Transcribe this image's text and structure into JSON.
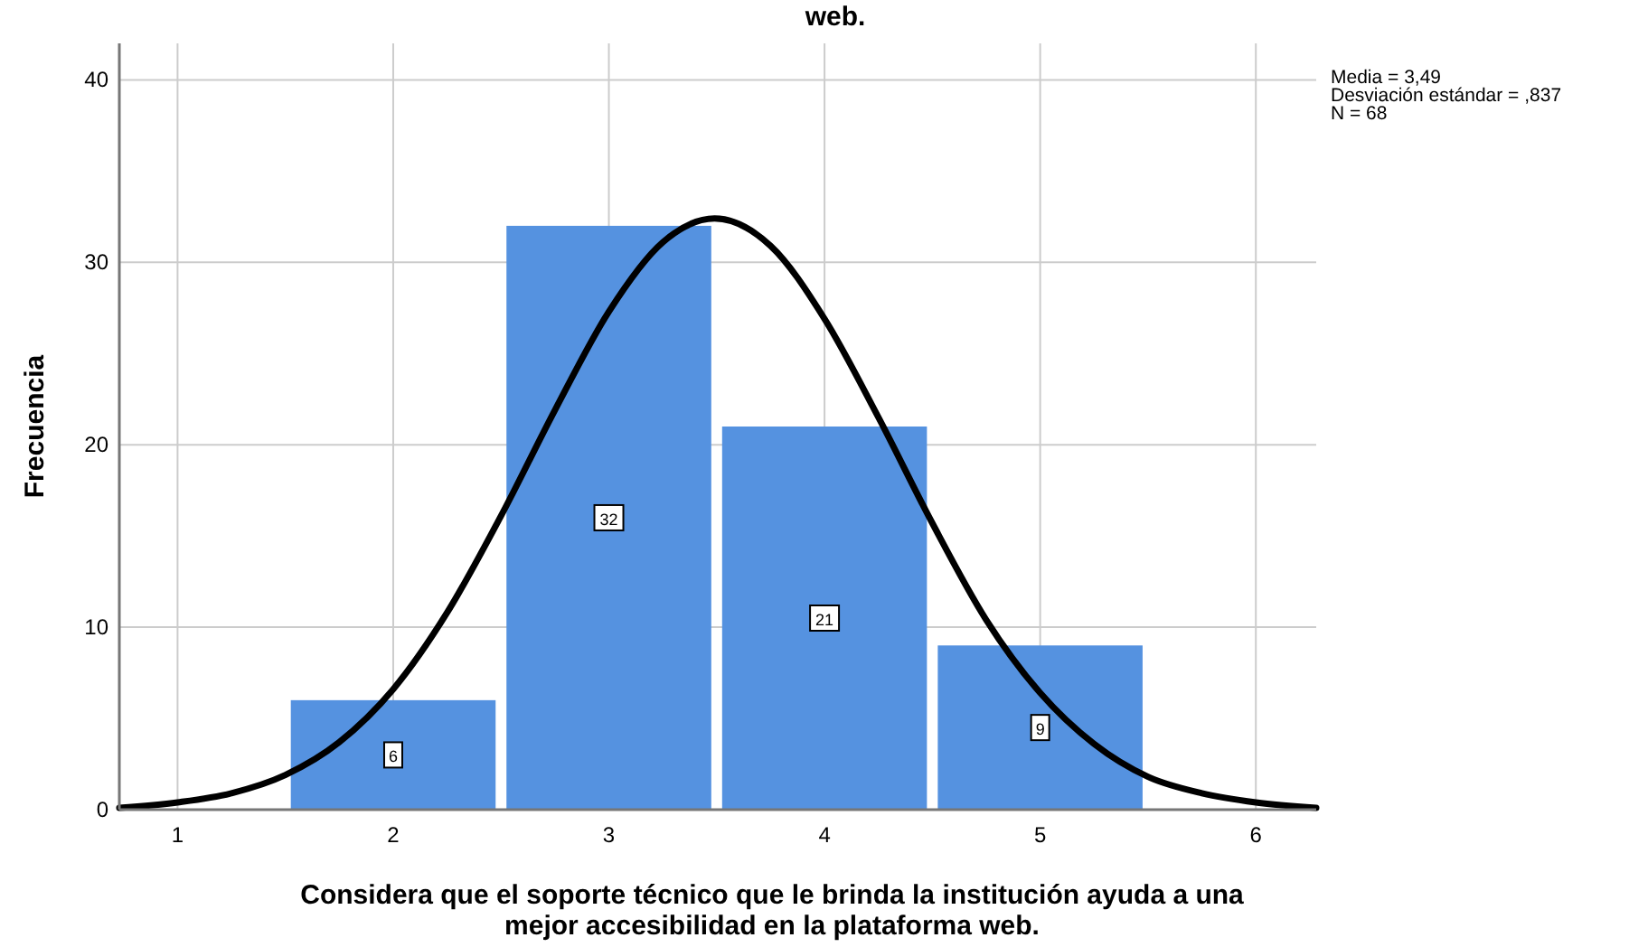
{
  "chart_data": {
    "type": "histogram",
    "title": "web.",
    "xlabel": "Considera que el soporte técnico que le brinda la institución ayuda a una\nmejor accesibilidad en la plataforma web.",
    "ylabel": "Frecuencia",
    "bins": [
      1.5,
      2.5,
      3.5,
      4.5,
      5.5
    ],
    "values": [
      6,
      32,
      21,
      9
    ],
    "color": "#5592e0",
    "value_labels": [
      "6",
      "32",
      "21",
      "9"
    ],
    "series": [
      {
        "type": "line",
        "color": "#000000",
        "x": [
          0.73,
          1,
          1.25,
          1.5,
          1.75,
          2,
          2.25,
          2.5,
          2.75,
          3,
          3.25,
          3.49,
          3.75,
          4,
          4.25,
          4.5,
          4.75,
          5,
          5.25,
          5.5,
          5.75,
          6,
          6.28
        ],
        "values": [
          0.1,
          0.4,
          0.9,
          1.9,
          3.7,
          6.6,
          10.8,
          16.1,
          21.9,
          27.3,
          31.1,
          32.4,
          30.9,
          26.9,
          21.5,
          15.7,
          10.4,
          6.4,
          3.6,
          1.8,
          0.9,
          0.4,
          0.1
        ]
      }
    ],
    "xlim": [
      0.73,
      6.28
    ],
    "ylim": [
      0,
      42
    ],
    "xticks": [
      1,
      2,
      3,
      4,
      5,
      6
    ],
    "yticks": [
      0,
      10,
      20,
      30,
      40
    ],
    "grid": true,
    "annotations": [
      "Media = 3,49",
      "Desviación estándar = ,837",
      "N = 68"
    ]
  }
}
